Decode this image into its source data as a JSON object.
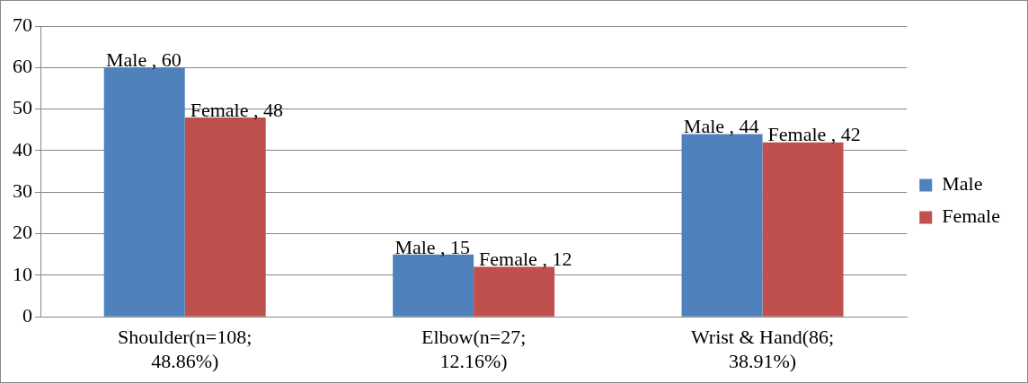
{
  "chart_data": {
    "type": "bar",
    "categories": [
      "Shoulder(n=108; 48.86%)",
      "Elbow(n=27; 12.16%)",
      "Wrist & Hand(86; 38.91%)"
    ],
    "series": [
      {
        "name": "Male",
        "color": "#4f81bd",
        "values": [
          60,
          15,
          44
        ],
        "value_labels": [
          "Male , 60",
          "Male , 15",
          "Male , 44"
        ]
      },
      {
        "name": "Female",
        "color": "#c0504d",
        "values": [
          48,
          12,
          42
        ],
        "value_labels": [
          "Female , 48",
          "Female , 12",
          "Female , 42"
        ]
      }
    ],
    "ylim": [
      0,
      70
    ],
    "yticks": [
      0,
      10,
      20,
      30,
      40,
      50,
      60,
      70
    ],
    "grid": "y",
    "legend": "right"
  }
}
